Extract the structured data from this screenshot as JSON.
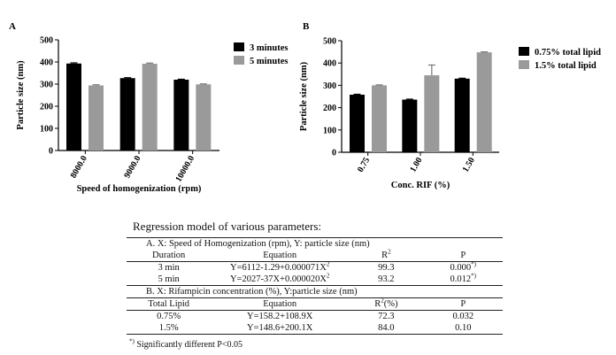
{
  "chart_data": [
    {
      "type": "bar",
      "panel_label": "A",
      "categories": [
        "8000.0",
        "9000.0",
        "10000.0"
      ],
      "series": [
        {
          "name": "3 minutes",
          "color": "#000000",
          "values": [
            393,
            327,
            320
          ],
          "errors": [
            3,
            2,
            2
          ]
        },
        {
          "name": "5 minutes",
          "color": "#9a9a9a",
          "values": [
            294,
            392,
            299
          ],
          "errors": [
            3,
            3,
            2
          ]
        }
      ],
      "xlabel": "Speed of homogenization (rpm)",
      "ylabel": "Particle size (nm)",
      "ylim": [
        0,
        500
      ],
      "yticks": [
        "0",
        "100",
        "200",
        "300",
        "400",
        "500"
      ],
      "legend": "top-right",
      "grid": false
    },
    {
      "type": "bar",
      "panel_label": "B",
      "categories": [
        "0.75",
        "1.00",
        "1.50"
      ],
      "series": [
        {
          "name": "0.75% total lipid",
          "color": "#000000",
          "values": [
            258,
            236,
            330
          ],
          "errors": [
            2,
            2,
            2
          ]
        },
        {
          "name": "1.5% total lipid",
          "color": "#9a9a9a",
          "values": [
            300,
            345,
            448
          ],
          "errors": [
            2,
            46,
            2
          ]
        }
      ],
      "xlabel": "Conc. RIF (%)",
      "ylabel": "Particle size (nm)",
      "ylim": [
        0,
        500
      ],
      "yticks": [
        "0",
        "100",
        "200",
        "300",
        "400",
        "500"
      ],
      "legend": "top-right",
      "grid": false
    }
  ],
  "regression": {
    "title": "Regression model of various parameters:",
    "sectionA": "A.  X: Speed of Homogenization (rpm), Y: particle size (nm)",
    "headerA": {
      "c1": "Duration",
      "c2": "Equation",
      "c3": "R",
      "c3_sup": "2",
      "c4": "P"
    },
    "rowsA": [
      {
        "c1": "3 min",
        "eq": "Y=6112-1.29+0.000071X",
        "eq_sup": "2",
        "r2": "99.3",
        "p": "0.000",
        "p_sup": "*)"
      },
      {
        "c1": "5 min",
        "eq": "Y=2027-37X+0.000020X",
        "eq_sup": "2",
        "r2": "93.2",
        "p": "0.012",
        "p_sup": "*)"
      }
    ],
    "sectionB": "B.  X: Rifampicin concentration (%), Y:particle size (nm)",
    "headerB": {
      "c1": "Total Lipid",
      "c2": "Equation",
      "c3": "R",
      "c3_sup": "2",
      "c3_tail": "(%)",
      "c4": "P"
    },
    "rowsB": [
      {
        "c1": "0.75%",
        "eq": "Y=158.2+108.9X",
        "r2": "72.3",
        "p": "0.032"
      },
      {
        "c1": "1.5%",
        "eq": "Y=148.6+200.1X",
        "r2": "84.0",
        "p": "0.10"
      }
    ],
    "footnote_mark": "*)",
    "footnote": " Significantly different P<0.05"
  }
}
